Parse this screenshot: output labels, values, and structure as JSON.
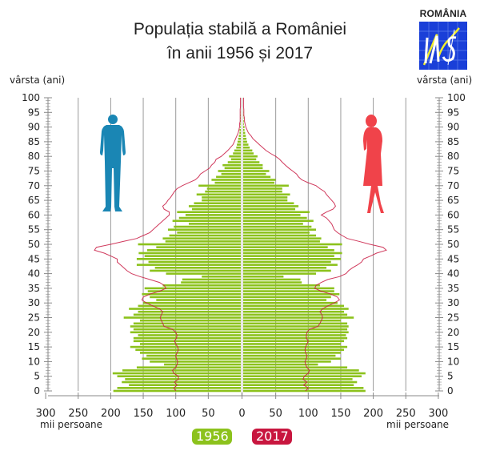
{
  "header": {
    "title_line1": "Populația stabilă a României",
    "title_line2": "în anii 1956 și 2017",
    "logo_country": "ROMÂNIA",
    "logo_mark": "INS",
    "logo_color": "#1a3fd8"
  },
  "axes": {
    "left_age_title": "vârsta (ani)",
    "right_age_title": "vârsta (ani)",
    "left_unit": "mii persoane",
    "right_unit": "mii persoane"
  },
  "legend": [
    {
      "label": "1956",
      "color": "#8cc21c"
    },
    {
      "label": "2017",
      "color": "#c8163f"
    }
  ],
  "figures": {
    "male_icon_color": "#1a86b4",
    "female_icon_color": "#f0434a"
  },
  "chart_data": {
    "type": "bar",
    "subtype": "population-pyramid",
    "title": "Populația stabilă a României în anii 1956 și 2017",
    "xlabel": "mii persoane",
    "ylabel": "vârsta (ani)",
    "xlim": [
      -300,
      300
    ],
    "x_ticks": [
      300,
      250,
      200,
      150,
      100,
      50,
      0,
      50,
      100,
      150,
      200,
      250,
      300
    ],
    "ylim": [
      0,
      100
    ],
    "y_ticks": [
      0,
      5,
      10,
      15,
      20,
      25,
      30,
      35,
      40,
      45,
      50,
      55,
      60,
      65,
      70,
      75,
      80,
      85,
      90,
      95,
      100
    ],
    "ages": [
      0,
      1,
      2,
      3,
      4,
      5,
      6,
      7,
      8,
      9,
      10,
      11,
      12,
      13,
      14,
      15,
      16,
      17,
      18,
      19,
      20,
      21,
      22,
      23,
      24,
      25,
      26,
      27,
      28,
      29,
      30,
      31,
      32,
      33,
      34,
      35,
      36,
      37,
      38,
      39,
      40,
      41,
      42,
      43,
      44,
      45,
      46,
      47,
      48,
      49,
      50,
      51,
      52,
      53,
      54,
      55,
      56,
      57,
      58,
      59,
      60,
      61,
      62,
      63,
      64,
      65,
      66,
      67,
      68,
      69,
      70,
      71,
      72,
      73,
      74,
      75,
      76,
      77,
      78,
      79,
      80,
      81,
      82,
      83,
      84,
      85,
      86,
      87,
      88,
      89,
      90,
      91,
      92,
      93,
      94,
      95,
      96,
      97,
      98,
      99,
      100
    ],
    "series": [
      {
        "name": "1956 bărbați",
        "side": "left",
        "style": "bar",
        "color": "#8cc21c",
        "values": [
          196,
          190,
          172,
          183,
          178,
          190,
          197,
          182,
          160,
          118,
          140,
          152,
          145,
          155,
          162,
          170,
          155,
          165,
          165,
          158,
          170,
          165,
          170,
          165,
          155,
          180,
          165,
          158,
          172,
          158,
          150,
          130,
          140,
          152,
          143,
          148,
          120,
          92,
          90,
          60,
          115,
          140,
          132,
          160,
          142,
          160,
          148,
          157,
          144,
          130,
          158,
          116,
          120,
          110,
          98,
          112,
          103,
          80,
          105,
          95,
          85,
          98,
          75,
          80,
          72,
          60,
          60,
          68,
          55,
          52,
          65,
          40,
          45,
          38,
          30,
          35,
          25,
          28,
          20,
          15,
          18,
          12,
          10,
          7,
          6,
          5,
          4,
          3,
          2,
          2,
          1,
          1,
          1,
          0.5,
          0.5,
          0.3,
          0.2,
          0.1,
          0.1,
          0.1,
          0.1
        ]
      },
      {
        "name": "1956 femei",
        "side": "right",
        "style": "bar",
        "color": "#8cc21c",
        "values": [
          188,
          185,
          170,
          175,
          168,
          182,
          188,
          178,
          160,
          115,
          135,
          150,
          142,
          150,
          155,
          160,
          150,
          155,
          160,
          158,
          162,
          160,
          162,
          160,
          150,
          170,
          160,
          155,
          162,
          155,
          145,
          128,
          135,
          148,
          140,
          140,
          118,
          90,
          88,
          62,
          112,
          135,
          128,
          145,
          135,
          150,
          140,
          152,
          140,
          130,
          152,
          118,
          120,
          112,
          102,
          112,
          105,
          92,
          108,
          98,
          88,
          102,
          80,
          85,
          78,
          68,
          68,
          72,
          60,
          60,
          70,
          48,
          50,
          42,
          35,
          40,
          30,
          30,
          25,
          20,
          22,
          16,
          14,
          10,
          8,
          6,
          5,
          4,
          3,
          2,
          2,
          1,
          1,
          0.5,
          0.5,
          0.3,
          0.2,
          0.1,
          0.1,
          0.1,
          0.1
        ]
      },
      {
        "name": "2017 bărbați",
        "side": "left",
        "style": "line",
        "color": "#c8163f",
        "values": [
          100,
          103,
          98,
          102,
          96,
          96,
          103,
          105,
          100,
          98,
          97,
          99,
          100,
          98,
          96,
          97,
          100,
          102,
          99,
          98,
          100,
          105,
          118,
          120,
          122,
          124,
          122,
          120,
          125,
          135,
          145,
          152,
          150,
          140,
          125,
          115,
          118,
          125,
          140,
          155,
          168,
          175,
          180,
          185,
          190,
          190,
          200,
          210,
          225,
          222,
          200,
          180,
          160,
          150,
          140,
          135,
          130,
          125,
          120,
          115,
          110,
          110,
          118,
          120,
          115,
          112,
          108,
          105,
          102,
          98,
          90,
          80,
          70,
          65,
          62,
          55,
          48,
          45,
          40,
          38,
          30,
          25,
          20,
          16,
          12,
          10,
          8,
          6,
          4,
          3,
          2,
          2,
          1,
          1,
          1,
          1,
          1,
          0.5,
          0.5,
          0.5,
          0.5
        ]
      },
      {
        "name": "2017 femei",
        "side": "right",
        "style": "line",
        "color": "#c8163f",
        "values": [
          96,
          100,
          93,
          98,
          92,
          94,
          100,
          102,
          98,
          96,
          95,
          97,
          98,
          96,
          95,
          96,
          98,
          100,
          97,
          97,
          98,
          102,
          115,
          118,
          120,
          122,
          121,
          118,
          122,
          130,
          140,
          148,
          145,
          135,
          120,
          110,
          112,
          120,
          130,
          148,
          158,
          162,
          168,
          176,
          182,
          185,
          196,
          205,
          220,
          215,
          195,
          178,
          160,
          152,
          145,
          140,
          138,
          136,
          132,
          128,
          120,
          128,
          138,
          142,
          140,
          136,
          132,
          128,
          125,
          118,
          112,
          100,
          90,
          85,
          82,
          76,
          70,
          65,
          60,
          56,
          50,
          42,
          35,
          30,
          25,
          20,
          15,
          12,
          8,
          6,
          4,
          3,
          2,
          2,
          1,
          1,
          1,
          0.5,
          0.5,
          0.5,
          0.5
        ]
      }
    ],
    "grid": "vertical",
    "legend_position": "bottom-center"
  }
}
